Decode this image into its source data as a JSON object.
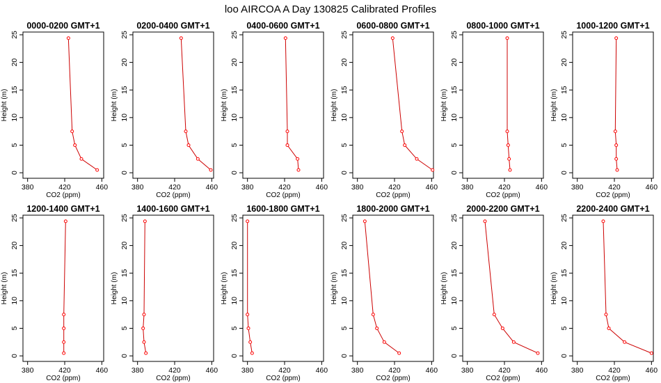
{
  "title": "loo AIRCOA A  Day 130825  Calibrated Profiles",
  "chart_data": {
    "type": "line",
    "layout": "grid 2x6",
    "xlabel": "CO2 (ppm)",
    "ylabel": "Height (m)",
    "xlim": [
      375,
      462
    ],
    "ylim": [
      -1,
      25.5
    ],
    "xticks": [
      380,
      420,
      460
    ],
    "yticks": [
      0,
      5,
      10,
      15,
      20,
      25
    ],
    "heights": [
      24.4,
      7.5,
      5.0,
      2.5,
      0.5
    ],
    "colors": {
      "line": "#cc0000",
      "marker": "#ff0000"
    },
    "panels": [
      {
        "title": "0000-0200 GMT+1",
        "x": [
          424,
          428,
          431,
          438,
          455
        ]
      },
      {
        "title": "0200-0400 GMT+1",
        "x": [
          427,
          432,
          435,
          445,
          459
        ]
      },
      {
        "title": "0400-0600 GMT+1",
        "x": [
          421,
          423,
          423,
          434,
          435
        ]
      },
      {
        "title": "0600-0800 GMT+1",
        "x": [
          418,
          428,
          431,
          444,
          461
        ]
      },
      {
        "title": "0800-1000 GMT+1",
        "x": [
          423,
          423,
          424,
          425,
          426
        ]
      },
      {
        "title": "1000-1200 GMT+1",
        "x": [
          422,
          421,
          422,
          422,
          423
        ]
      },
      {
        "title": "1200-1400 GMT+1",
        "x": [
          421,
          419,
          419,
          419,
          419
        ]
      },
      {
        "title": "1400-1600 GMT+1",
        "x": [
          388,
          387,
          386,
          387,
          389
        ]
      },
      {
        "title": "1600-1800 GMT+1",
        "x": [
          380,
          380,
          381,
          383,
          385
        ]
      },
      {
        "title": "1800-2000 GMT+1",
        "x": [
          388,
          397,
          401,
          409,
          425
        ]
      },
      {
        "title": "2000-2200 GMT+1",
        "x": [
          399,
          409,
          418,
          430,
          456
        ]
      },
      {
        "title": "2200-2400 GMT+1",
        "x": [
          408,
          411,
          414,
          431,
          460
        ]
      }
    ]
  }
}
